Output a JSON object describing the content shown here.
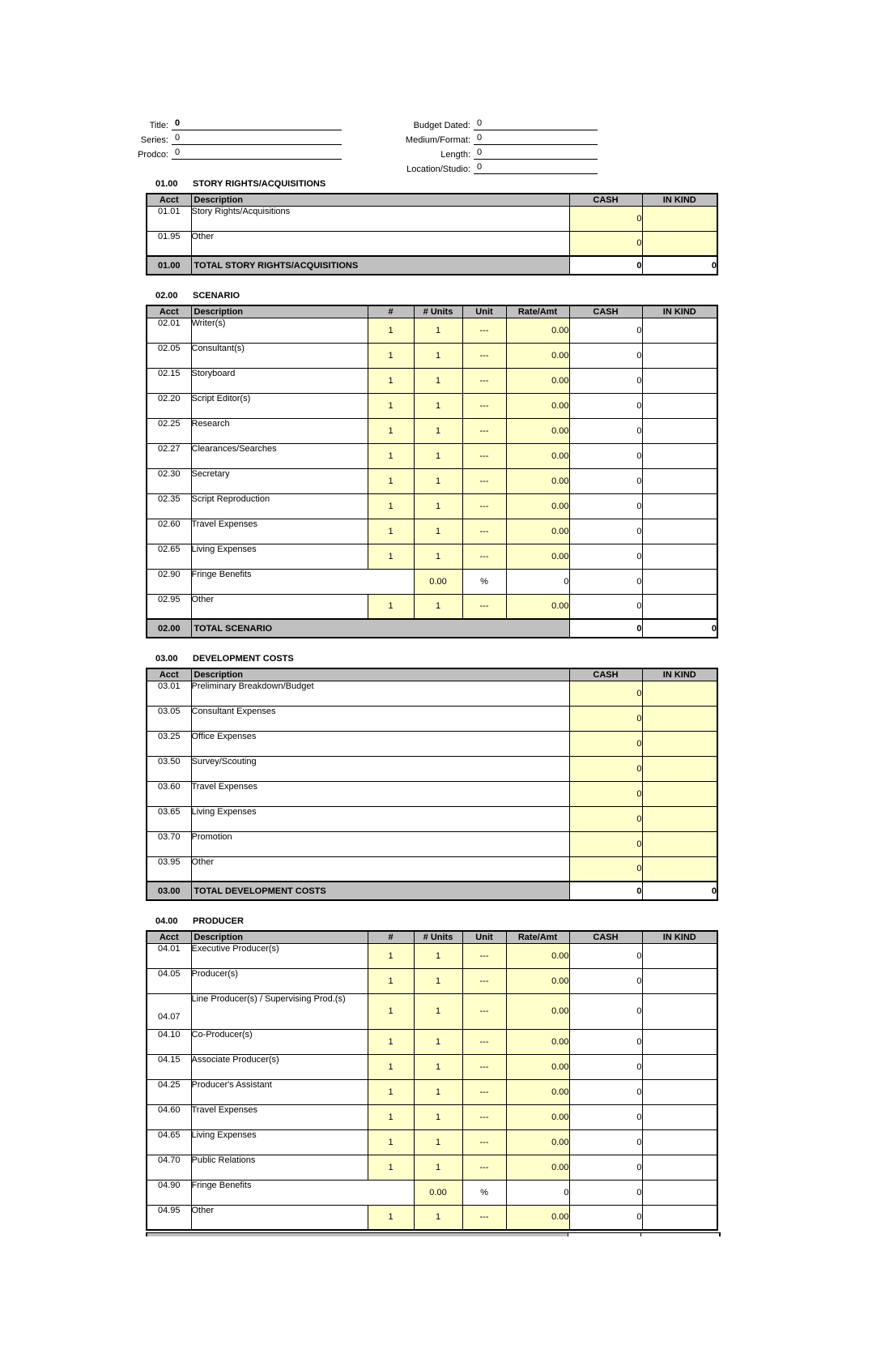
{
  "header": {
    "left_fields": [
      {
        "label": "Title:",
        "value": "0",
        "bold": true
      },
      {
        "label": "Series:",
        "value": "0"
      },
      {
        "label": "Prodco:",
        "value": "0"
      }
    ],
    "right_fields": [
      {
        "label": "Budget Dated:",
        "value": "0"
      },
      {
        "label": "Medium/Format:",
        "value": "0"
      },
      {
        "label": "Length:",
        "value": "0"
      },
      {
        "label": "Location/Studio:",
        "value": "0"
      }
    ]
  },
  "table_columns": {
    "acct": "Acct",
    "description": "Description",
    "num": "#",
    "num_units": "# Units",
    "unit": "Unit",
    "rate": "Rate/Amt",
    "cash": "CASH",
    "in_kind": "IN KIND"
  },
  "colors": {
    "header_gray": "#C0C0C0",
    "input_yellow": "#FFFFCC"
  },
  "sections": [
    {
      "code": "01.00",
      "title": "STORY RIGHTS/ACQUISITIONS",
      "layout": "simple",
      "rows": [
        {
          "acct": "01.01",
          "description": "Story Rights/Acquisitions",
          "cash": "0",
          "in_kind": ""
        },
        {
          "acct": "01.95",
          "description": "Other",
          "cash": "0",
          "in_kind": ""
        }
      ],
      "total": {
        "code": "01.00",
        "label": "TOTAL STORY RIGHTS/ACQUISITIONS",
        "cash": "0",
        "in_kind": "0"
      }
    },
    {
      "code": "02.00",
      "title": "SCENARIO",
      "layout": "detail",
      "rows": [
        {
          "acct": "02.01",
          "row_type": "standard",
          "description": "Writer(s)",
          "num": "1",
          "num_units": "1",
          "unit": "---",
          "rate": "0.00",
          "cash": "0",
          "in_kind": ""
        },
        {
          "acct": "02.05",
          "row_type": "standard",
          "description": "Consultant(s)",
          "num": "1",
          "num_units": "1",
          "unit": "---",
          "rate": "0.00",
          "cash": "0",
          "in_kind": ""
        },
        {
          "acct": "02.15",
          "row_type": "standard",
          "description": "Storyboard",
          "num": "1",
          "num_units": "1",
          "unit": "---",
          "rate": "0.00",
          "cash": "0",
          "in_kind": ""
        },
        {
          "acct": "02.20",
          "row_type": "standard",
          "description": "Script Editor(s)",
          "num": "1",
          "num_units": "1",
          "unit": "---",
          "rate": "0.00",
          "cash": "0",
          "in_kind": ""
        },
        {
          "acct": "02.25",
          "row_type": "standard",
          "description": "Research",
          "num": "1",
          "num_units": "1",
          "unit": "---",
          "rate": "0.00",
          "cash": "0",
          "in_kind": ""
        },
        {
          "acct": "02.27",
          "row_type": "standard",
          "description": "Clearances/Searches",
          "num": "1",
          "num_units": "1",
          "unit": "---",
          "rate": "0.00",
          "cash": "0",
          "in_kind": ""
        },
        {
          "acct": "02.30",
          "row_type": "standard",
          "description": "Secretary",
          "num": "1",
          "num_units": "1",
          "unit": "---",
          "rate": "0.00",
          "cash": "0",
          "in_kind": ""
        },
        {
          "acct": "02.35",
          "row_type": "standard",
          "description": "Script Reproduction",
          "num": "1",
          "num_units": "1",
          "unit": "---",
          "rate": "0.00",
          "cash": "0",
          "in_kind": ""
        },
        {
          "acct": "02.60",
          "row_type": "standard",
          "description": "Travel Expenses",
          "num": "1",
          "num_units": "1",
          "unit": "---",
          "rate": "0.00",
          "cash": "0",
          "in_kind": ""
        },
        {
          "acct": "02.65",
          "row_type": "standard",
          "description": "Living Expenses",
          "num": "1",
          "num_units": "1",
          "unit": "---",
          "rate": "0.00",
          "cash": "0",
          "in_kind": ""
        },
        {
          "acct": "02.90",
          "row_type": "fringe",
          "description": "Fringe Benefits",
          "num_units": "0.00",
          "unit": "%",
          "rate": "0",
          "cash": "0",
          "in_kind": ""
        },
        {
          "acct": "02.95",
          "row_type": "standard",
          "description": "Other",
          "num": "1",
          "num_units": "1",
          "unit": "---",
          "rate": "0.00",
          "cash": "0",
          "in_kind": ""
        }
      ],
      "total": {
        "code": "02.00",
        "label": "TOTAL SCENARIO",
        "cash": "0",
        "in_kind": "0"
      }
    },
    {
      "code": "03.00",
      "title": "DEVELOPMENT COSTS",
      "layout": "simple",
      "rows": [
        {
          "acct": "03.01",
          "description": "Preliminary Breakdown/Budget",
          "cash": "0",
          "in_kind": ""
        },
        {
          "acct": "03.05",
          "description": "Consultant Expenses",
          "cash": "0",
          "in_kind": ""
        },
        {
          "acct": "03.25",
          "description": "Office Expenses",
          "cash": "0",
          "in_kind": ""
        },
        {
          "acct": "03.50",
          "description": "Survey/Scouting",
          "cash": "0",
          "in_kind": ""
        },
        {
          "acct": "03.60",
          "description": "Travel Expenses",
          "cash": "0",
          "in_kind": ""
        },
        {
          "acct": "03.65",
          "description": "Living Expenses",
          "cash": "0",
          "in_kind": ""
        },
        {
          "acct": "03.70",
          "description": "Promotion",
          "cash": "0",
          "in_kind": ""
        },
        {
          "acct": "03.95",
          "description": "Other",
          "cash": "0",
          "in_kind": ""
        }
      ],
      "total": {
        "code": "03.00",
        "label": "TOTAL DEVELOPMENT COSTS",
        "cash": "0",
        "in_kind": "0"
      }
    },
    {
      "code": "04.00",
      "title": "PRODUCER",
      "layout": "detail",
      "rows": [
        {
          "acct": "04.01",
          "row_type": "standard",
          "description": "Executive Producer(s)",
          "num": "1",
          "num_units": "1",
          "unit": "---",
          "rate": "0.00",
          "cash": "0",
          "in_kind": ""
        },
        {
          "acct": "04.05",
          "row_type": "standard",
          "description": "Producer(s)",
          "num": "1",
          "num_units": "1",
          "unit": "---",
          "rate": "0.00",
          "cash": "0",
          "in_kind": ""
        },
        {
          "acct": "04.07",
          "row_type": "standard",
          "tall": true,
          "description": "Line Producer(s) / Supervising Prod.(s)",
          "num": "1",
          "num_units": "1",
          "unit": "---",
          "rate": "0.00",
          "cash": "0",
          "in_kind": ""
        },
        {
          "acct": "04.10",
          "row_type": "standard",
          "description": "Co-Producer(s)",
          "num": "1",
          "num_units": "1",
          "unit": "---",
          "rate": "0.00",
          "cash": "0",
          "in_kind": ""
        },
        {
          "acct": "04.15",
          "row_type": "standard",
          "description": "Associate Producer(s)",
          "num": "1",
          "num_units": "1",
          "unit": "---",
          "rate": "0.00",
          "cash": "0",
          "in_kind": ""
        },
        {
          "acct": "04.25",
          "row_type": "standard",
          "description": "Producer's Assistant",
          "num": "1",
          "num_units": "1",
          "unit": "---",
          "rate": "0.00",
          "cash": "0",
          "in_kind": ""
        },
        {
          "acct": "04.60",
          "row_type": "standard",
          "description": "Travel Expenses",
          "num": "1",
          "num_units": "1",
          "unit": "---",
          "rate": "0.00",
          "cash": "0",
          "in_kind": ""
        },
        {
          "acct": "04.65",
          "row_type": "standard",
          "description": "Living Expenses",
          "num": "1",
          "num_units": "1",
          "unit": "---",
          "rate": "0.00",
          "cash": "0",
          "in_kind": ""
        },
        {
          "acct": "04.70",
          "row_type": "standard",
          "description": "Public Relations",
          "num": "1",
          "num_units": "1",
          "unit": "---",
          "rate": "0.00",
          "cash": "0",
          "in_kind": ""
        },
        {
          "acct": "04.90",
          "row_type": "fringe",
          "description": "Fringe Benefits",
          "num_units": "0.00",
          "unit": "%",
          "rate": "0",
          "cash": "0",
          "in_kind": ""
        },
        {
          "acct": "04.95",
          "row_type": "standard",
          "description": "Other",
          "num": "1",
          "num_units": "1",
          "unit": "---",
          "rate": "0.00",
          "cash": "0",
          "in_kind": ""
        }
      ],
      "cut_off_total": true
    }
  ]
}
